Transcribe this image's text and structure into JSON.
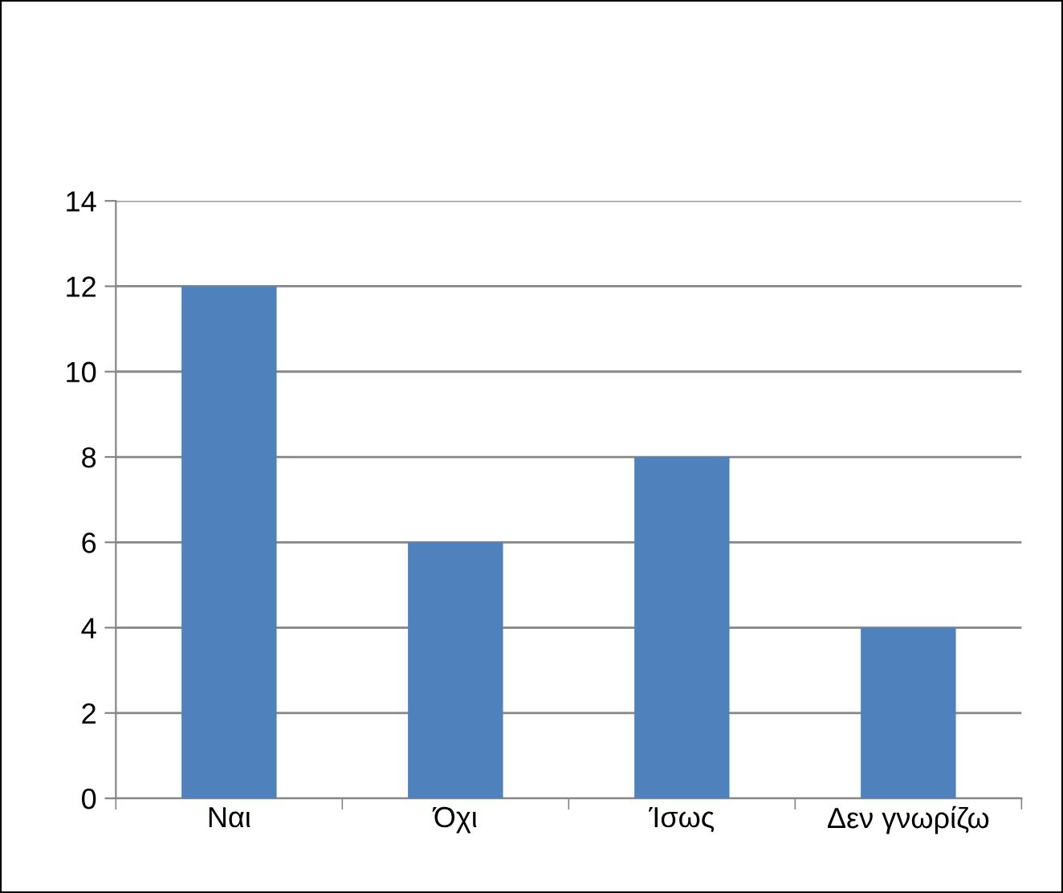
{
  "chart_data": {
    "type": "bar",
    "categories": [
      "Ναι",
      "Όχι",
      "Ίσως",
      "Δεν γνωρίζω"
    ],
    "values": [
      12,
      6,
      8,
      4
    ],
    "color": "#4f81bd",
    "ylim": [
      0,
      14
    ],
    "yticks": [
      0,
      2,
      4,
      6,
      8,
      10,
      12,
      14
    ],
    "grid": "y",
    "legend": false
  }
}
